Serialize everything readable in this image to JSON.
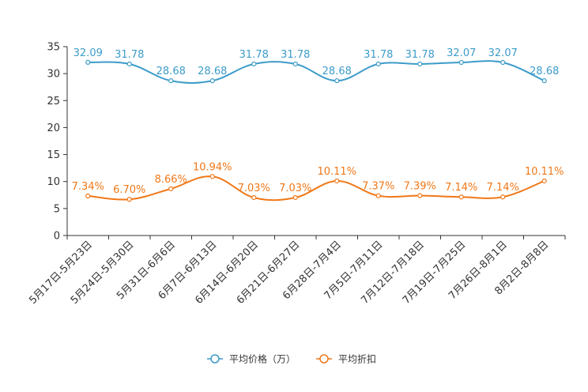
{
  "chart_data": {
    "type": "line",
    "title": "",
    "xlabel": "",
    "ylabel": "",
    "ylim": [
      0,
      35
    ],
    "yticks": [
      0,
      5,
      10,
      15,
      20,
      25,
      30,
      35
    ],
    "grid": false,
    "legend_position": "bottom-center",
    "categories": [
      "5月17日-5月23日",
      "5月24日-5月30日",
      "5月31日-6月6日",
      "6月7日-6月13日",
      "6月14日-6月20日",
      "6月21日-6月27日",
      "6月28日-7月4日",
      "7月5日-7月11日",
      "7月12日-7月18日",
      "7月19日-7月25日",
      "7月26日-8月1日",
      "8月2日-8月8日"
    ],
    "series": [
      {
        "name": "平均价格（万）",
        "color": "#3d9cc9",
        "values": [
          32.09,
          31.78,
          28.68,
          28.68,
          31.78,
          31.78,
          28.68,
          31.78,
          31.78,
          32.07,
          32.07,
          28.68
        ],
        "labels": [
          "32.09",
          "31.78",
          "28.68",
          "28.68",
          "31.78",
          "31.78",
          "28.68",
          "31.78",
          "31.78",
          "32.07",
          "32.07",
          "28.68"
        ]
      },
      {
        "name": "平均折扣",
        "color": "#f07818",
        "values": [
          7.34,
          6.7,
          8.66,
          10.94,
          7.03,
          7.03,
          10.11,
          7.37,
          7.39,
          7.14,
          7.14,
          10.11
        ],
        "labels": [
          "7.34%",
          "6.70%",
          "8.66%",
          "10.94%",
          "7.03%",
          "7.03%",
          "10.11%",
          "7.37%",
          "7.39%",
          "7.14%",
          "7.14%",
          "10.11%"
        ]
      }
    ]
  }
}
